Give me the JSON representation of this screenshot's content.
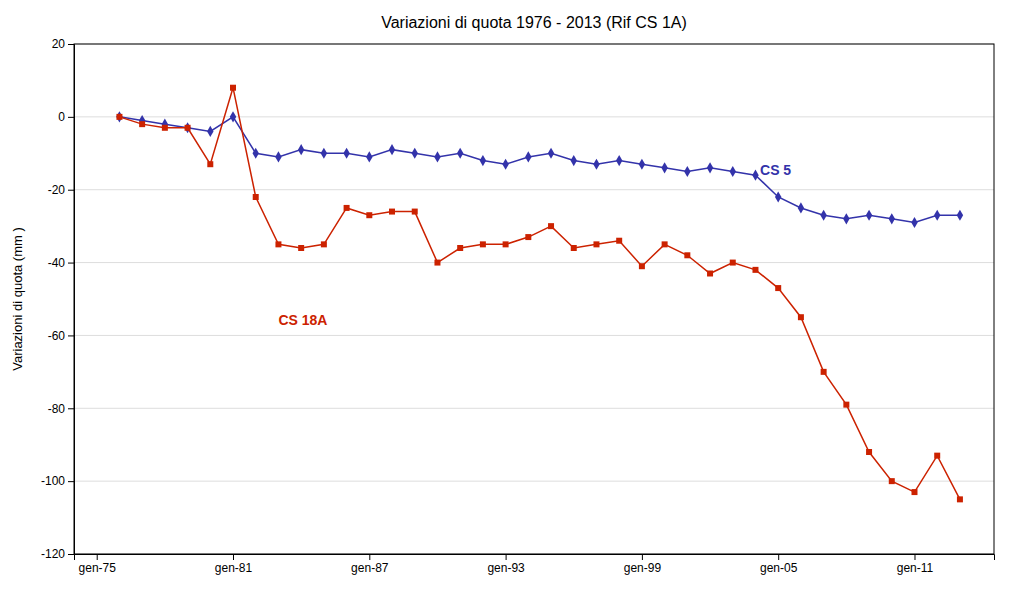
{
  "chart_data": {
    "type": "line",
    "title": "Variazioni di quota 1976 - 2013 (Rif CS 1A)",
    "ylabel": "Variazioni di quota (mm )",
    "x": [
      1976,
      1977,
      1978,
      1979,
      1980,
      1981,
      1982,
      1983,
      1984,
      1985,
      1986,
      1987,
      1988,
      1989,
      1990,
      1991,
      1992,
      1993,
      1994,
      1995,
      1996,
      1997,
      1998,
      1999,
      2000,
      2001,
      2002,
      2003,
      2004,
      2005,
      2006,
      2007,
      2008,
      2009,
      2010,
      2011,
      2012,
      2013
    ],
    "series": [
      {
        "color": "#3333AA",
        "marker": "diamond",
        "values": [
          0,
          -1,
          -2,
          -3,
          -4,
          0,
          -10,
          -11,
          -9,
          -10,
          -10,
          -11,
          -9,
          -10,
          -11,
          -10,
          -12,
          -13,
          -11,
          -10,
          -12,
          -13,
          -12,
          -13,
          -14,
          -15,
          -14,
          -15,
          -16,
          -22,
          -25,
          -27,
          -28,
          -27,
          -28,
          -29,
          -27,
          -27
        ]
      },
      {
        "color": "#CC2200",
        "marker": "square",
        "values": [
          0,
          -2,
          -3,
          -3,
          -13,
          8,
          -22,
          -35,
          -36,
          -35,
          -25,
          -27,
          -26,
          -26,
          -40,
          -36,
          -35,
          -35,
          -33,
          -30,
          -36,
          -35,
          -34,
          -41,
          -35,
          -38,
          -43,
          -40,
          -42,
          -47,
          -55,
          -70,
          -79,
          -92,
          -100,
          -103,
          -93,
          -105
        ]
      }
    ],
    "annotations": [
      {
        "text": "CS 5",
        "x": 2004.2,
        "y": -16,
        "color": "#3333AA"
      },
      {
        "text": "CS 18A",
        "x": 1983,
        "y": -57,
        "color": "#CC2200"
      }
    ],
    "xlim": [
      1974.0,
      2014.5
    ],
    "xticks": [
      {
        "value": 1975,
        "label": "gen-75"
      },
      {
        "value": 1981,
        "label": "gen-81"
      },
      {
        "value": 1987,
        "label": "gen-87"
      },
      {
        "value": 1993,
        "label": "gen-93"
      },
      {
        "value": 1999,
        "label": "gen-99"
      },
      {
        "value": 2005,
        "label": "gen-05"
      },
      {
        "value": 2011,
        "label": "gen-11"
      }
    ],
    "ylim": [
      -120,
      20
    ],
    "yticks": [
      -120,
      -100,
      -80,
      -60,
      -40,
      -20,
      0,
      20
    ],
    "grid": "y"
  }
}
